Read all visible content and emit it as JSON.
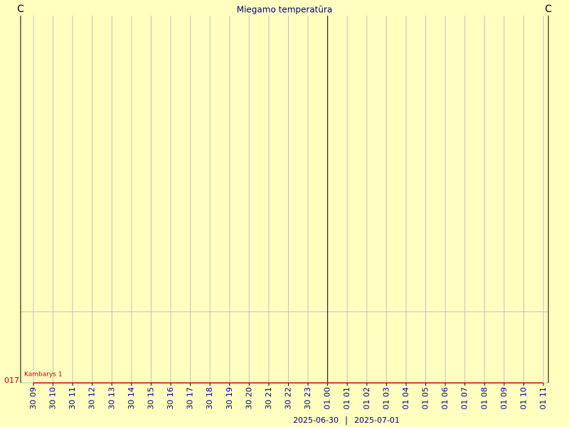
{
  "chart_data": {
    "type": "line",
    "title": "Miegamo temperatūra",
    "y_unit_left": "C",
    "y_unit_right": "C",
    "categories": [
      "30 09",
      "30 10",
      "30 11",
      "30 12",
      "30 13",
      "30 14",
      "30 15",
      "30 16",
      "30 17",
      "30 18",
      "30 19",
      "30 20",
      "30 21",
      "30 22",
      "30 23",
      "01 00",
      "01 01",
      "01 02",
      "01 03",
      "01 04",
      "01 05",
      "01 06",
      "01 07",
      "01 08",
      "01 09",
      "01 10",
      "01 11"
    ],
    "dates": [
      "2025-06-30",
      "2025-07-01"
    ],
    "series": [
      {
        "name": "Kambarys 1",
        "color": "#cc0000",
        "values": [
          17,
          17,
          17,
          17,
          17,
          17,
          17,
          17,
          17,
          17,
          17,
          17,
          17,
          17,
          17,
          17,
          17,
          17,
          17,
          17,
          17,
          17,
          17,
          17,
          17,
          17,
          17
        ]
      }
    ],
    "ylim": [
      17,
      18
    ],
    "yticks": [
      {
        "value": 17,
        "label": "017"
      }
    ],
    "grid": true
  }
}
